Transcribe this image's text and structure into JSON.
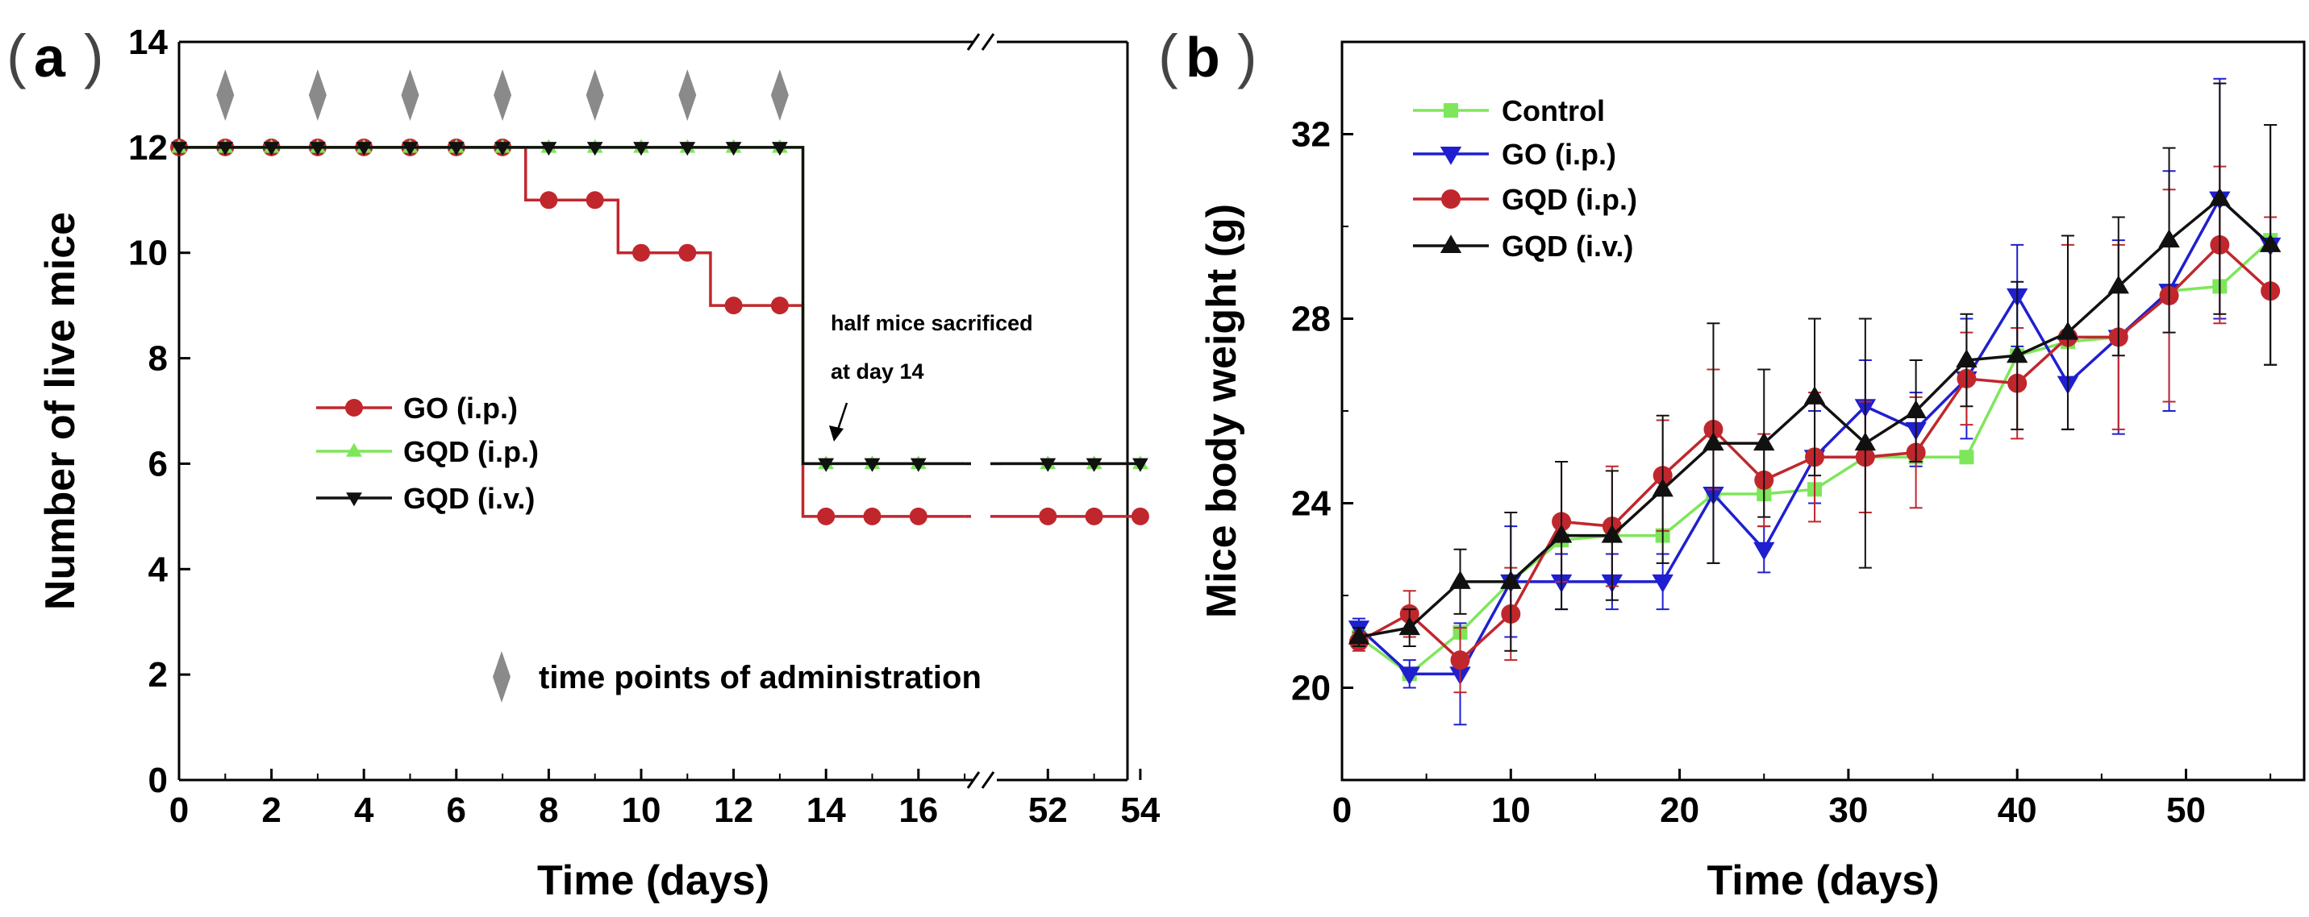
{
  "colors": {
    "go": "#c0272d",
    "gqd_ip": "#7ee65a",
    "gqd_iv": "#111111",
    "control": "#7ee65a",
    "go_b": "#1f1fd0",
    "gqd_ip_b": "#c0272d",
    "gqd_iv_b": "#111111",
    "diamond": "#8a8a8a"
  },
  "panel_a_letter": "a",
  "panel_b_letter": "b",
  "chart_data": [
    {
      "id": "a",
      "type": "line",
      "xlabel": "Time (days)",
      "ylabel": "Number of live mice",
      "ylim": [
        0,
        14
      ],
      "yticks": [
        0,
        2,
        4,
        6,
        8,
        10,
        12,
        14
      ],
      "xticks": [
        "0",
        "2",
        "4",
        "6",
        "8",
        "10",
        "12",
        "14",
        "16",
        "52",
        "54"
      ],
      "x_break": "between 17 and 51",
      "annotation_line1": "half mice sacrificed",
      "annotation_line2": "at day 14",
      "admin_label": "time points of administration",
      "admin_days": [
        1,
        3,
        5,
        7,
        9,
        11,
        13
      ],
      "series": [
        {
          "name": "GO (i.p.)",
          "color_key": "go",
          "marker": "circle",
          "points": [
            [
              0,
              12
            ],
            [
              1,
              12
            ],
            [
              2,
              12
            ],
            [
              3,
              12
            ],
            [
              4,
              12
            ],
            [
              5,
              12
            ],
            [
              6,
              12
            ],
            [
              7,
              12
            ],
            [
              8,
              11
            ],
            [
              9,
              11
            ],
            [
              10,
              10
            ],
            [
              11,
              10
            ],
            [
              12,
              9
            ],
            [
              13,
              9
            ],
            [
              14,
              5
            ],
            [
              15,
              5
            ],
            [
              16,
              5
            ],
            [
              17,
              5
            ],
            [
              51,
              5
            ],
            [
              52,
              5
            ],
            [
              53,
              5
            ],
            [
              54,
              5
            ]
          ]
        },
        {
          "name": "GQD (i.p.)",
          "color_key": "gqd_ip",
          "marker": "triangle-up",
          "points": [
            [
              0,
              12
            ],
            [
              1,
              12
            ],
            [
              2,
              12
            ],
            [
              3,
              12
            ],
            [
              4,
              12
            ],
            [
              5,
              12
            ],
            [
              6,
              12
            ],
            [
              7,
              12
            ],
            [
              8,
              12
            ],
            [
              9,
              12
            ],
            [
              10,
              12
            ],
            [
              11,
              12
            ],
            [
              12,
              12
            ],
            [
              13,
              12
            ],
            [
              14,
              6
            ],
            [
              15,
              6
            ],
            [
              16,
              6
            ],
            [
              17,
              6
            ],
            [
              51,
              6
            ],
            [
              52,
              6
            ],
            [
              53,
              6
            ],
            [
              54,
              6
            ]
          ]
        },
        {
          "name": "GQD (i.v.)",
          "color_key": "gqd_iv",
          "marker": "triangle-down",
          "points": [
            [
              0,
              12
            ],
            [
              1,
              12
            ],
            [
              2,
              12
            ],
            [
              3,
              12
            ],
            [
              4,
              12
            ],
            [
              5,
              12
            ],
            [
              6,
              12
            ],
            [
              7,
              12
            ],
            [
              8,
              12
            ],
            [
              9,
              12
            ],
            [
              10,
              12
            ],
            [
              11,
              12
            ],
            [
              12,
              12
            ],
            [
              13,
              12
            ],
            [
              14,
              6
            ],
            [
              15,
              6
            ],
            [
              16,
              6
            ],
            [
              17,
              6
            ],
            [
              51,
              6
            ],
            [
              52,
              6
            ],
            [
              53,
              6
            ],
            [
              54,
              6
            ]
          ]
        }
      ]
    },
    {
      "id": "b",
      "type": "line",
      "xlabel": "Time (days)",
      "ylabel": "Mice body weight (g)",
      "xlim": [
        0,
        57
      ],
      "ylim": [
        18,
        34
      ],
      "xticks": [
        0,
        10,
        20,
        30,
        40,
        50
      ],
      "yticks": [
        20,
        24,
        28,
        32
      ],
      "series": [
        {
          "name": "Control",
          "color_key": "control",
          "marker": "square",
          "x": [
            1,
            4,
            7,
            10,
            13,
            16,
            19,
            22,
            25,
            28,
            31,
            34,
            37,
            40,
            43,
            46,
            49,
            52,
            55
          ],
          "y": [
            21.1,
            20.3,
            21.2,
            22.3,
            23.2,
            23.3,
            23.3,
            24.2,
            24.2,
            24.3,
            25.0,
            25.0,
            25.0,
            27.2,
            27.5,
            27.6,
            28.6,
            28.7,
            29.7
          ],
          "err": [
            0,
            0,
            0,
            0,
            0,
            0,
            0,
            0,
            0,
            0,
            0,
            0,
            0,
            0,
            0,
            0,
            0,
            0,
            0
          ]
        },
        {
          "name": "GO (i.p.)",
          "color_key": "go_b",
          "marker": "triangle-down",
          "x": [
            1,
            4,
            7,
            10,
            13,
            16,
            19,
            22,
            25,
            28,
            31,
            34,
            37,
            40,
            43,
            46,
            49,
            52,
            55
          ],
          "y": [
            21.3,
            20.3,
            20.3,
            22.3,
            22.3,
            22.3,
            22.3,
            24.2,
            23.0,
            25.0,
            26.1,
            25.6,
            26.7,
            28.5,
            26.6,
            27.6,
            28.6,
            30.6,
            29.6
          ],
          "err": [
            0.2,
            0.3,
            1.1,
            1.2,
            0.6,
            0.6,
            0.6,
            1.5,
            0.5,
            1.0,
            1.0,
            0.8,
            1.3,
            1.1,
            1.0,
            2.1,
            2.6,
            2.6,
            2.6
          ]
        },
        {
          "name": "GQD (i.p.)",
          "color_key": "gqd_ip_b",
          "marker": "circle",
          "x": [
            1,
            4,
            7,
            10,
            13,
            16,
            19,
            22,
            25,
            28,
            31,
            34,
            37,
            40,
            43,
            46,
            49,
            52,
            55
          ],
          "y": [
            21.0,
            21.6,
            20.6,
            21.6,
            23.6,
            23.5,
            24.6,
            25.6,
            24.5,
            25.0,
            25.0,
            25.1,
            26.7,
            26.6,
            27.6,
            27.6,
            28.5,
            29.6,
            28.6
          ],
          "err": [
            0.2,
            0.5,
            0.7,
            1.0,
            1.3,
            1.3,
            1.2,
            1.3,
            1.0,
            1.4,
            1.2,
            1.2,
            1.0,
            1.2,
            2.0,
            2.0,
            2.3,
            1.7,
            1.6
          ]
        },
        {
          "name": "GQD (i.v.)",
          "color_key": "gqd_iv_b",
          "marker": "triangle-up",
          "x": [
            1,
            4,
            7,
            10,
            13,
            16,
            19,
            22,
            25,
            28,
            31,
            34,
            37,
            40,
            43,
            46,
            49,
            52,
            55
          ],
          "y": [
            21.1,
            21.3,
            22.3,
            22.3,
            23.3,
            23.3,
            24.3,
            25.3,
            25.3,
            26.3,
            25.3,
            26.0,
            27.1,
            27.2,
            27.7,
            28.7,
            29.7,
            30.6,
            29.6
          ],
          "err": [
            0.2,
            0.4,
            0.7,
            1.5,
            1.6,
            1.4,
            1.6,
            2.6,
            1.6,
            1.7,
            2.7,
            1.1,
            1.0,
            1.6,
            2.1,
            1.5,
            2.0,
            2.5,
            2.6
          ]
        }
      ]
    }
  ]
}
